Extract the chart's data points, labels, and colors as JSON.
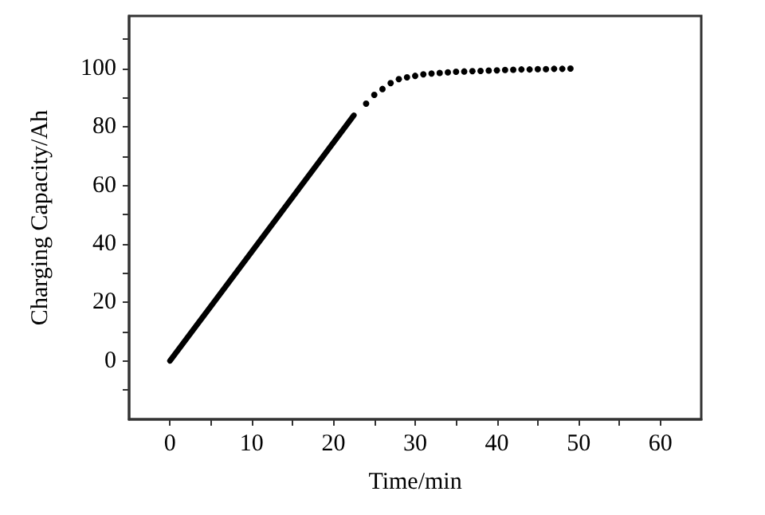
{
  "chart_data": {
    "type": "line",
    "xlabel": "Time/min",
    "ylabel": "Charging Capacity/Ah",
    "xlim": [
      -5,
      65
    ],
    "ylim": [
      -20,
      118
    ],
    "xticks": [
      0,
      {
        "value": 5,
        "label": null
      },
      10,
      {
        "value": 15,
        "label": null
      },
      20,
      {
        "value": 25,
        "label": null
      },
      30,
      {
        "value": 35,
        "label": null
      },
      40,
      {
        "value": 45,
        "label": null
      },
      50,
      {
        "value": 55,
        "label": null
      },
      60
    ],
    "yticks": [
      {
        "value": -10,
        "label": null
      },
      0,
      {
        "value": 10,
        "label": null
      },
      20,
      {
        "value": 30,
        "label": null
      },
      40,
      {
        "value": 50,
        "label": null
      },
      60,
      {
        "value": 70,
        "label": null
      },
      80,
      {
        "value": 90,
        "label": null
      },
      100,
      {
        "value": 110,
        "label": null
      }
    ],
    "grid": false,
    "series": [
      {
        "type": "line",
        "color": "#000000",
        "marker": "none",
        "line_style": "solid",
        "x": [
          0,
          22.5
        ],
        "values": [
          0,
          84
        ]
      },
      {
        "type": "scatter",
        "color": "#000000",
        "marker": "circle",
        "x": [
          24,
          25,
          26,
          27,
          28,
          29,
          30,
          31,
          32,
          33,
          34,
          35,
          36,
          37,
          38,
          39,
          40,
          41,
          42,
          43,
          44,
          45,
          46,
          47,
          48,
          49
        ],
        "values": [
          88,
          91,
          93,
          95,
          96.4,
          97,
          97.5,
          98,
          98.3,
          98.5,
          98.7,
          98.9,
          99,
          99.1,
          99.2,
          99.3,
          99.4,
          99.5,
          99.6,
          99.7,
          99.7,
          99.8,
          99.8,
          99.9,
          99.9,
          100
        ]
      }
    ]
  }
}
